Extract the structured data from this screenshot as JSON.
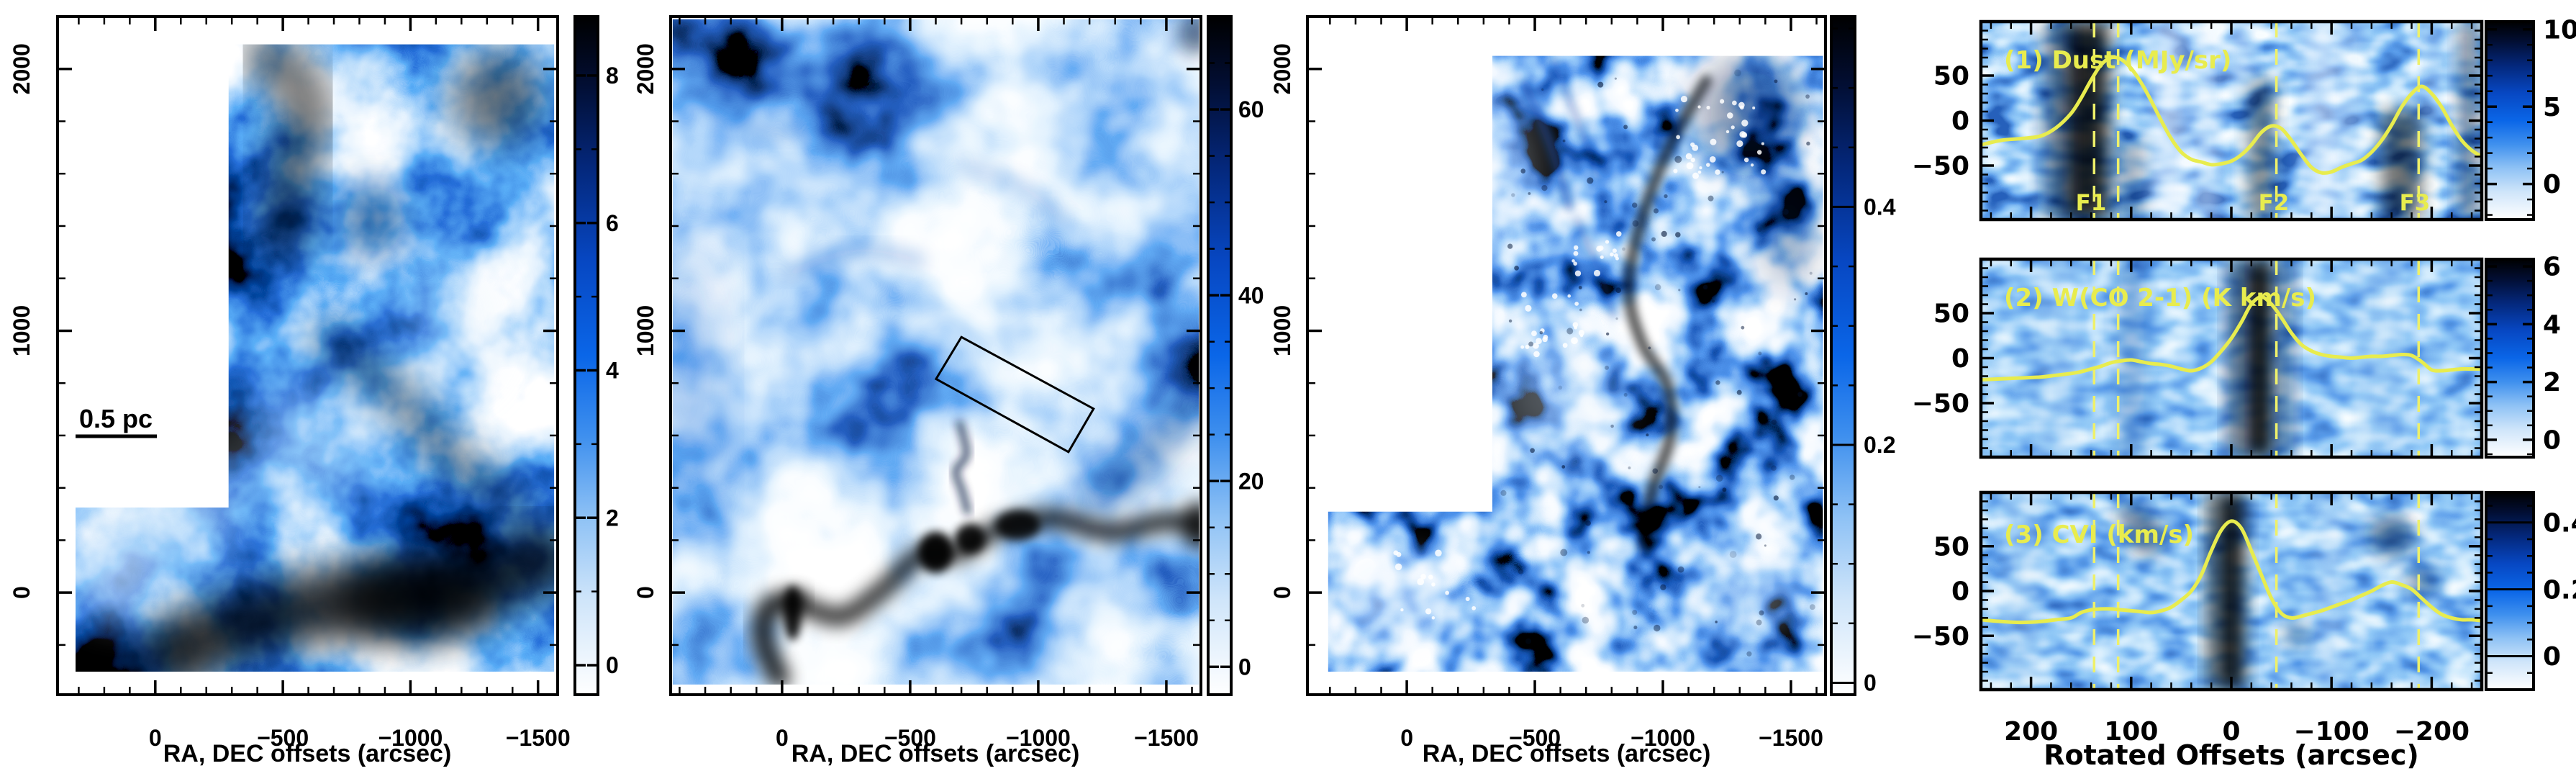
{
  "text": {
    "maps_xlabel": "RA, DEC offsets (arcsec)",
    "scale_bar": "0.5 pc",
    "profiles_xlabel": "Rotated Offsets (arcsec)",
    "profile_titles": [
      "(1) Dust (MJy/sr)",
      "(2) W(CO 2-1) (K km/s)",
      "(3) CVI (km/s)"
    ],
    "filament_labels": [
      "F1",
      "F2",
      "F3"
    ]
  },
  "colors": {
    "annotation_yellow": "#e8ec4e",
    "dashed_line_yellow": "#eef06a",
    "frame_black": "#000000",
    "colormap_low": "#ffffff",
    "colormap_mid": "#0a66e8",
    "colormap_high": "#000000",
    "background": "#ffffff"
  },
  "chart_data": [
    {
      "type": "heatmap",
      "panel": "map-1-dust",
      "xlabel": "RA, DEC offsets (arcsec)",
      "x_ticks": [
        0,
        -500,
        -1000,
        -1500
      ],
      "x_range": [
        383,
        -1577
      ],
      "x_minor_step": 100,
      "y_ticks": [
        2000,
        1000,
        0
      ],
      "y_range": [
        2200,
        -390
      ],
      "y_minor_step": 200,
      "colorbar_ticks": [
        8,
        6,
        4,
        2,
        0
      ],
      "colorbar_range": [
        8.8,
        -0.4
      ],
      "colorbar_minor_step": 1,
      "scale_bar_label": "0.5 pc",
      "grid": false,
      "legend_position": "right-colorbar"
    },
    {
      "type": "heatmap",
      "panel": "map-2-co",
      "xlabel": "RA, DEC offsets (arcsec)",
      "x_ticks": [
        0,
        -500,
        -1000,
        -1500
      ],
      "x_range": [
        435,
        -1635
      ],
      "x_minor_step": 100,
      "y_ticks": [
        2000,
        1000,
        0
      ],
      "y_range": [
        2200,
        -390
      ],
      "y_minor_step": 200,
      "colorbar_ticks": [
        60,
        40,
        20,
        0
      ],
      "colorbar_range": [
        70,
        -3
      ],
      "colorbar_minor_step": 5,
      "overlay_rectangle_arcsec": [
        [
          -700,
          976
        ],
        [
          -1216,
          702
        ],
        [
          -1118,
          537
        ],
        [
          -601,
          816
        ]
      ],
      "grid": false,
      "legend_position": "right-colorbar"
    },
    {
      "type": "heatmap",
      "panel": "map-3-cvi",
      "xlabel": "RA, DEC offsets (arcsec)",
      "x_ticks": [
        0,
        -500,
        -1000,
        -1500
      ],
      "x_range": [
        388,
        -1635
      ],
      "x_minor_step": 100,
      "y_ticks": [
        2000,
        1000,
        0
      ],
      "y_range": [
        2200,
        -390
      ],
      "y_minor_step": 200,
      "colorbar_ticks": [
        0.4,
        0.2,
        0
      ],
      "colorbar_range": [
        0.56,
        -0.01
      ],
      "colorbar_minor_step": 0.05,
      "grid": false,
      "legend_position": "right-colorbar"
    },
    {
      "type": "line",
      "panel": "rotated-offset-profiles",
      "xlabel": "Rotated Offsets (arcsec)",
      "x_ticks": [
        200,
        100,
        0,
        -100,
        -200
      ],
      "x_range": [
        250,
        -250
      ],
      "x_minor_step": 20,
      "y_ticks": [
        50,
        0,
        -50
      ],
      "y_range": [
        110,
        -110
      ],
      "y_minor_step": 10,
      "dashed_lines_x": [
        137,
        113,
        -45,
        -187
      ],
      "filament_labels": [
        "F1",
        "F2",
        "F3"
      ],
      "filament_label_x": [
        125,
        -45,
        -187
      ],
      "x": [
        250,
        230,
        210,
        190,
        175,
        160,
        150,
        140,
        130,
        120,
        110,
        100,
        90,
        80,
        70,
        60,
        50,
        40,
        30,
        20,
        10,
        0,
        -10,
        -20,
        -30,
        -40,
        -50,
        -60,
        -70,
        -80,
        -90,
        -100,
        -110,
        -120,
        -130,
        -140,
        -150,
        -160,
        -170,
        -180,
        -190,
        -200,
        -210,
        -220,
        -230,
        -240,
        -250
      ],
      "series": [
        {
          "name": "(1) Dust (MJy/sr)",
          "y": [
            -27,
            -22,
            -20,
            -17,
            -8,
            8,
            25,
            45,
            62,
            70,
            68,
            58,
            42,
            22,
            0,
            -20,
            -35,
            -43,
            -46,
            -49,
            -48,
            -45,
            -38,
            -27,
            -13,
            -6,
            -9,
            -22,
            -38,
            -52,
            -58,
            -57,
            -52,
            -48,
            -44,
            -35,
            -22,
            -5,
            15,
            30,
            38,
            30,
            15,
            -5,
            -22,
            -33,
            -40
          ],
          "colorbar_ticks": [
            10,
            5,
            0
          ],
          "colorbar_range": [
            10.5,
            -2.3
          ],
          "colorbar_minor_step": 1
        },
        {
          "name": "(2) W(CO 2-1) (K km/s)",
          "y": [
            -24,
            -23,
            -22,
            -21,
            -19,
            -17,
            -15,
            -12,
            -9,
            -5,
            -3,
            -2,
            -4,
            -6,
            -7,
            -9,
            -12,
            -14,
            -11,
            -4,
            8,
            22,
            40,
            60,
            68,
            60,
            45,
            28,
            15,
            8,
            4,
            2,
            1,
            0,
            1,
            2,
            2,
            3,
            4,
            3,
            -4,
            -13,
            -14,
            -13,
            -12,
            -12,
            -12
          ],
          "colorbar_ticks": [
            6,
            4,
            2,
            0
          ],
          "colorbar_range": [
            6.25,
            -0.6
          ],
          "colorbar_minor_step": 0.5
        },
        {
          "name": "(3) CVI (km/s)",
          "y": [
            -32,
            -34,
            -35,
            -34,
            -32,
            -30,
            -24,
            -21,
            -20,
            -20,
            -21,
            -22,
            -23,
            -24,
            -22,
            -18,
            -10,
            0,
            18,
            45,
            68,
            78,
            70,
            45,
            18,
            -8,
            -25,
            -30,
            -28,
            -25,
            -22,
            -18,
            -14,
            -10,
            -5,
            0,
            6,
            10,
            7,
            2,
            -8,
            -18,
            -26,
            -30,
            -32,
            -32,
            -33
          ],
          "colorbar_ticks": [
            0.4,
            0.2,
            0
          ],
          "colorbar_range": [
            0.49,
            -0.1
          ],
          "colorbar_minor_step": 0.05
        }
      ],
      "line_color": "#e8ec4e",
      "grid": false,
      "legend_position": "right-colorbar"
    }
  ]
}
